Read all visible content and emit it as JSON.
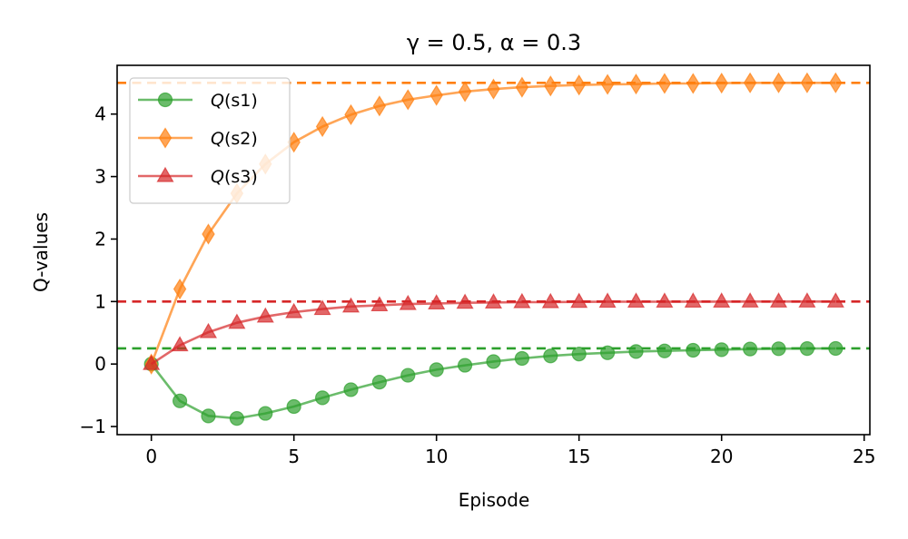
{
  "chart_data": {
    "type": "line",
    "title": "γ = 0.5, α = 0.3",
    "xlabel": "Episode",
    "ylabel": "Q-values",
    "xlim": [
      -1.2,
      25.2
    ],
    "ylim": [
      -1.13,
      4.78
    ],
    "xticks": [
      0,
      5,
      10,
      15,
      20,
      25
    ],
    "yticks": [
      -1,
      0,
      1,
      2,
      3,
      4
    ],
    "ytick_labels": [
      "−1",
      "0",
      "1",
      "2",
      "3",
      "4"
    ],
    "grid": false,
    "legend_position": "upper-left",
    "x": [
      0,
      1,
      2,
      3,
      4,
      5,
      6,
      7,
      8,
      9,
      10,
      11,
      12,
      13,
      14,
      15,
      16,
      17,
      18,
      19,
      20,
      21,
      22,
      23,
      24
    ],
    "series": [
      {
        "name": "Q(s1)",
        "label_italic": "Q",
        "label_rest": "(s1)",
        "color": "#2ca02c",
        "marker": "circle",
        "values": [
          0,
          -0.59,
          -0.83,
          -0.87,
          -0.79,
          -0.68,
          -0.54,
          -0.41,
          -0.29,
          -0.18,
          -0.09,
          -0.02,
          0.04,
          0.09,
          0.13,
          0.16,
          0.18,
          0.2,
          0.21,
          0.22,
          0.23,
          0.24,
          0.245,
          0.248,
          0.25
        ],
        "reference": 0.25
      },
      {
        "name": "Q(s2)",
        "label_italic": "Q",
        "label_rest": "(s2)",
        "color": "#ff7f0e",
        "marker": "diamond",
        "values": [
          0,
          1.2,
          2.08,
          2.73,
          3.2,
          3.55,
          3.8,
          3.99,
          4.13,
          4.23,
          4.3,
          4.36,
          4.4,
          4.43,
          4.45,
          4.465,
          4.475,
          4.48,
          4.49,
          4.49,
          4.495,
          4.5,
          4.5,
          4.5,
          4.5
        ],
        "reference": 4.5
      },
      {
        "name": "Q(s3)",
        "label_italic": "Q",
        "label_rest": "(s3)",
        "color": "#d62728",
        "marker": "triangle",
        "values": [
          0,
          0.3,
          0.51,
          0.66,
          0.76,
          0.83,
          0.88,
          0.92,
          0.94,
          0.96,
          0.97,
          0.98,
          0.985,
          0.99,
          0.99,
          0.995,
          0.997,
          0.998,
          0.998,
          0.999,
          0.999,
          1.0,
          1.0,
          1.0,
          1.0
        ],
        "reference": 1.0
      }
    ]
  }
}
